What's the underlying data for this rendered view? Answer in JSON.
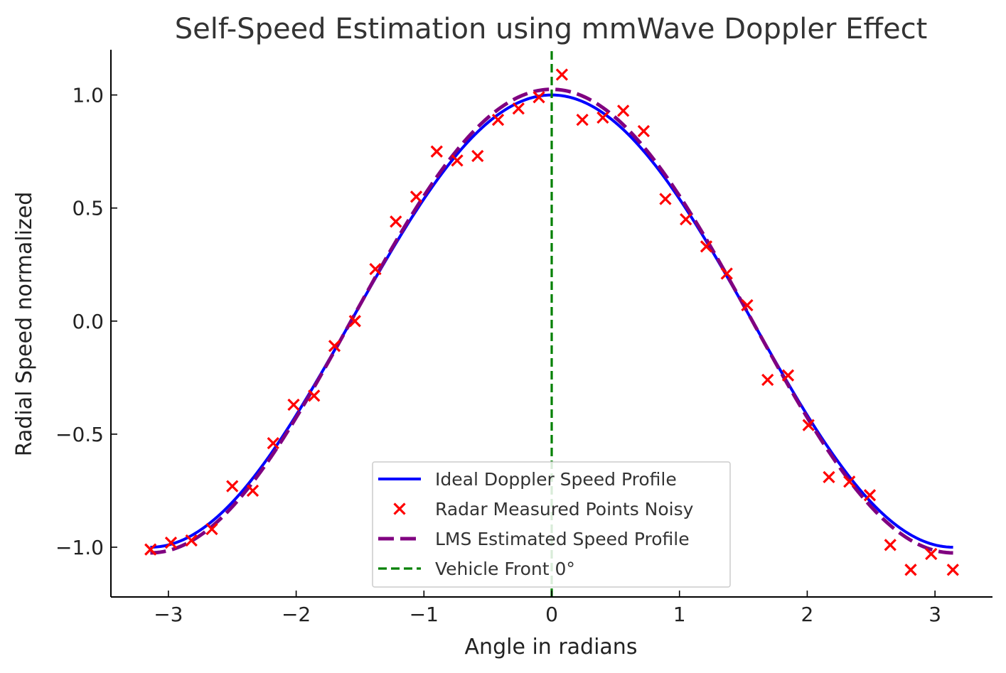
{
  "chart_data": {
    "type": "line",
    "title": "Self-Speed Estimation using mmWave Doppler Effect",
    "xlabel": "Angle in radians",
    "ylabel": "Radial Speed normalized",
    "xlim": [
      -3.45,
      3.45
    ],
    "ylim": [
      -1.22,
      1.2
    ],
    "x_ticks": [
      -3,
      -2,
      -1,
      0,
      1,
      2,
      3
    ],
    "x_tick_labels": [
      "−3",
      "−2",
      "−1",
      "0",
      "1",
      "2",
      "3"
    ],
    "y_ticks": [
      -1.0,
      -0.5,
      0.0,
      0.5,
      1.0
    ],
    "y_tick_labels": [
      "−1.0",
      "−0.5",
      "0.0",
      "0.5",
      "1.0"
    ],
    "grid": false,
    "legend_position": "bottom-center",
    "series": [
      {
        "name": "Ideal Doppler Speed Profile",
        "kind": "line",
        "style": "solid",
        "color": "#0000ff",
        "function": "cos",
        "amplitude": 1.0,
        "x_range": [
          -3.1416,
          3.1416
        ]
      },
      {
        "name": "Radar Measured Points Noisy",
        "kind": "scatter",
        "marker": "x",
        "color": "#ff0000",
        "x": [
          -3.14,
          -2.98,
          -2.82,
          -2.66,
          -2.5,
          -2.34,
          -2.18,
          -2.02,
          -1.86,
          -1.7,
          -1.54,
          -1.38,
          -1.22,
          -1.06,
          -0.9,
          -0.74,
          -0.58,
          -0.42,
          -0.26,
          -0.1,
          0.08,
          0.24,
          0.4,
          0.56,
          0.72,
          0.89,
          1.05,
          1.21,
          1.37,
          1.53,
          1.69,
          1.85,
          2.01,
          2.17,
          2.33,
          2.49,
          2.65,
          2.81,
          2.97,
          3.14
        ],
        "y": [
          -1.01,
          -0.98,
          -0.97,
          -0.92,
          -0.73,
          -0.75,
          -0.54,
          -0.37,
          -0.33,
          -0.11,
          0.0,
          0.23,
          0.44,
          0.55,
          0.75,
          0.71,
          0.73,
          0.89,
          0.94,
          0.99,
          1.09,
          0.89,
          0.9,
          0.93,
          0.84,
          0.54,
          0.45,
          0.33,
          0.21,
          0.07,
          -0.26,
          -0.24,
          -0.46,
          -0.69,
          -0.71,
          -0.77,
          -0.99,
          -1.1,
          -1.03,
          -1.1
        ]
      },
      {
        "name": "LMS Estimated Speed Profile",
        "kind": "line",
        "style": "dashed",
        "color": "#800080",
        "function": "cos",
        "amplitude": 1.025,
        "x_range": [
          -3.1416,
          3.1416
        ]
      },
      {
        "name": "Vehicle Front 0°",
        "kind": "vline",
        "style": "dashed",
        "color": "#008000",
        "x": 0
      }
    ]
  }
}
